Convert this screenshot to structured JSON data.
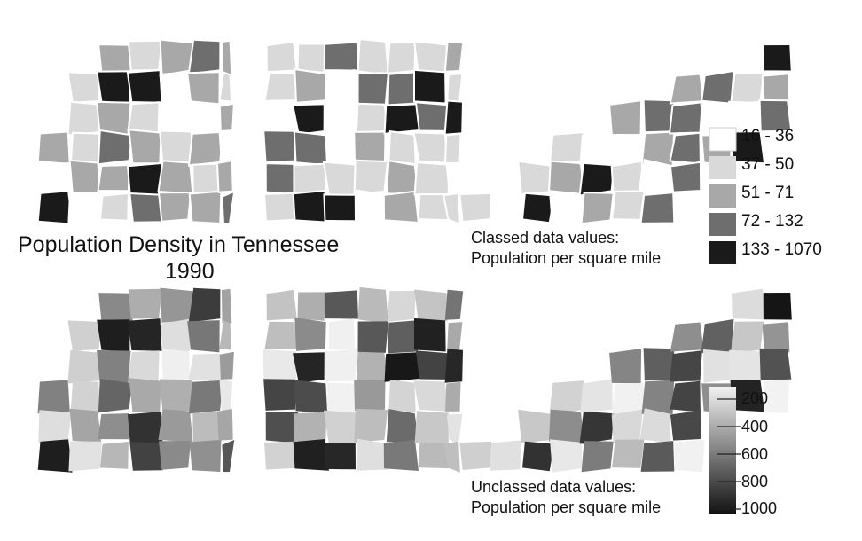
{
  "title": {
    "line1": "Population Density in Tennessee",
    "line2": "1990"
  },
  "classed_map": {
    "caption_line1": "Classed data values:",
    "caption_line2": "Population per square mile",
    "legend": [
      {
        "label": "16 - 36",
        "color": "#ffffff"
      },
      {
        "label": "37 - 50",
        "color": "#d9d9d9"
      },
      {
        "label": "51 - 71",
        "color": "#a8a8a8"
      },
      {
        "label": "72 - 132",
        "color": "#6e6e6e"
      },
      {
        "label": "133 - 1070",
        "color": "#1a1a1a"
      }
    ]
  },
  "unclassed_map": {
    "caption_line1": "Unclassed data values:",
    "caption_line2": "Population per square mile",
    "scale_ticks": [
      "200",
      "400",
      "600",
      "800",
      "1000"
    ],
    "gradient_colors": [
      "#f2f2f2",
      "#111111"
    ]
  },
  "colors": {
    "background": "#ffffff",
    "county_border": "#ffffff",
    "ink": "#111111"
  }
}
